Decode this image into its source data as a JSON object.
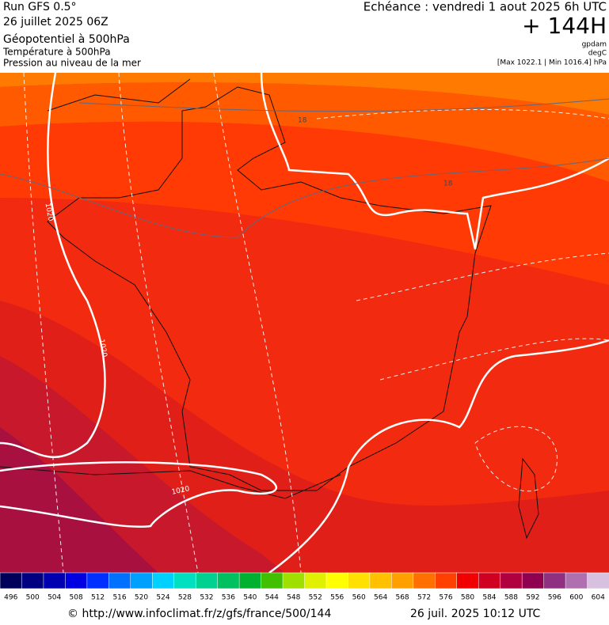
{
  "header": {
    "run": "Run GFS 0.5°",
    "date": "26 juillet 2025 06Z",
    "title": "Géopotentiel à 500hPa",
    "subtitle1": "Température à 500hPa",
    "subtitle2": "Pression au niveau de la mer",
    "valid": "Echéance : vendredi 1 aout 2025 6h UTC",
    "lead": "+ 144H",
    "unit1": "gpdam",
    "unit2": "degC",
    "range": "[Max 1022.1 | Min 1016.4] hPa"
  },
  "map": {
    "contour_labels": [
      "18",
      "18",
      "1020",
      "1020",
      "1020"
    ]
  },
  "colorbar": {
    "values": [
      496,
      500,
      504,
      508,
      512,
      516,
      520,
      524,
      528,
      532,
      536,
      540,
      544,
      548,
      552,
      556,
      560,
      564,
      568,
      572,
      576,
      580,
      584,
      588,
      592,
      596,
      600,
      604
    ],
    "colors": [
      "#00005a",
      "#000080",
      "#0000b0",
      "#0000e0",
      "#0030ff",
      "#0070ff",
      "#00a0ff",
      "#00d0ff",
      "#00e0c0",
      "#00d090",
      "#00c060",
      "#00b030",
      "#40c000",
      "#a0e000",
      "#e0f000",
      "#ffff00",
      "#ffe000",
      "#ffc000",
      "#ffa000",
      "#ff7000",
      "#ff4000",
      "#f00000",
      "#d00020",
      "#b00040",
      "#900050",
      "#903080",
      "#b070b0",
      "#d8c0e0"
    ]
  },
  "footer": {
    "url": "© http://www.infoclimat.fr/z/gfs/france/500/144",
    "stamp": "26 juil. 2025 10:12 UTC"
  }
}
